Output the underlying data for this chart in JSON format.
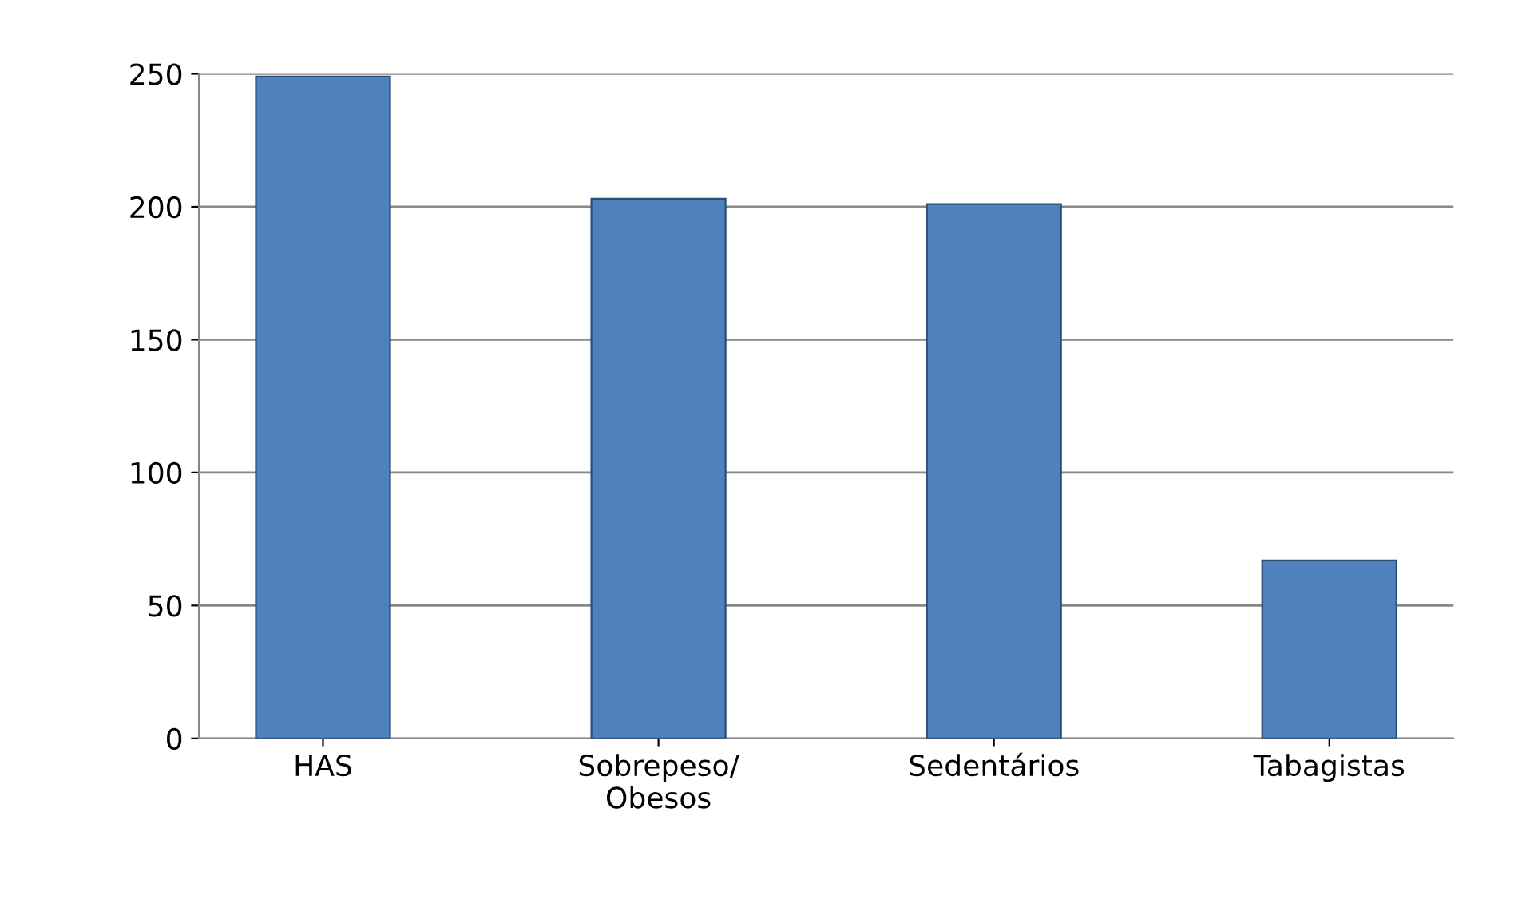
{
  "chart_data": {
    "type": "bar",
    "categories": [
      "HAS",
      "Sobrepeso/\nObesos",
      "Sedentários",
      "Tabagistas"
    ],
    "values": [
      249,
      203,
      201,
      67
    ],
    "color": "#4f81bd",
    "ylim": [
      0,
      250
    ],
    "yticks": [
      0,
      50,
      100,
      150,
      200,
      250
    ],
    "grid": "y"
  }
}
